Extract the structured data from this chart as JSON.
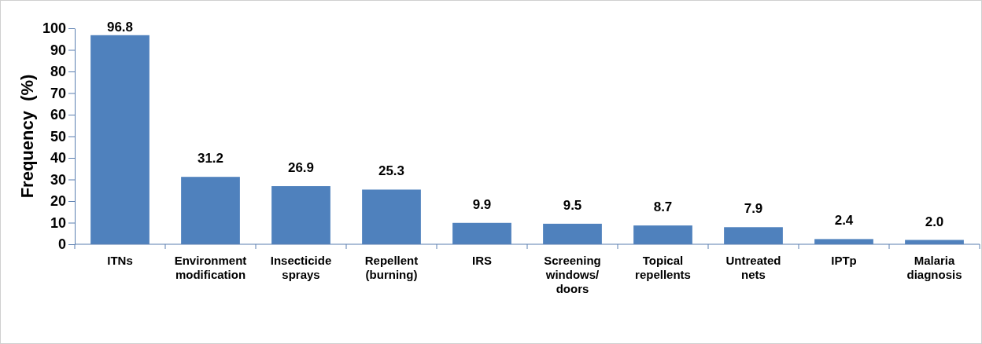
{
  "chart_data": {
    "type": "bar",
    "ylabel": "Frequency  (%)",
    "categories": [
      "ITNs",
      "Environment modification",
      "Insecticide sprays",
      "Repellent (burning)",
      "IRS",
      "Screening windows/ doors",
      "Topical repellents",
      "Untreated nets",
      "IPTp",
      "Malaria diagnosis"
    ],
    "values": [
      96.8,
      31.2,
      26.9,
      25.3,
      9.9,
      9.5,
      8.7,
      7.9,
      2.4,
      2.0
    ],
    "value_labels": [
      "96.8",
      "31.2",
      "26.9",
      "25.3",
      "9.9",
      "9.5",
      "8.7",
      "7.9",
      "2.4",
      "2.0"
    ],
    "color": "#4f81bd",
    "ylim": [
      0,
      100
    ],
    "yticks": [
      0,
      10,
      20,
      30,
      40,
      50,
      60,
      70,
      80,
      90,
      100
    ],
    "grid": false
  }
}
